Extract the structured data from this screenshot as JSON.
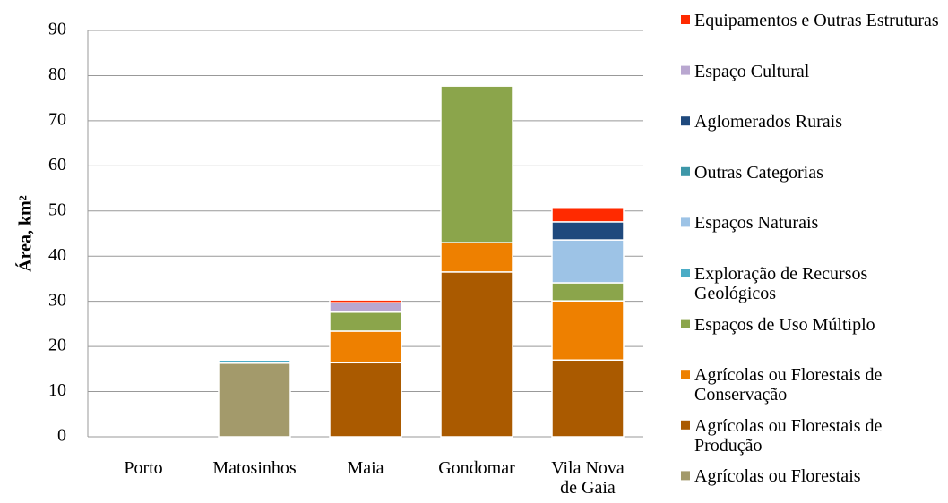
{
  "chart_data": {
    "type": "stacked_bar",
    "y_label": "Área, km²",
    "categories": [
      "Porto",
      "Matosinhos",
      "Maia",
      "Gondomar",
      "Vila Nova de Gaia"
    ],
    "series": [
      {
        "name": "Agrícolas ou Florestais",
        "color": "#a39a6b",
        "values": [
          0,
          16.3,
          0,
          0,
          0
        ]
      },
      {
        "name": "Agrícolas ou Florestais de Produção",
        "color": "#aa5a00",
        "values": [
          0,
          0,
          16.4,
          36.5,
          17.0
        ]
      },
      {
        "name": "Agrícolas ou Florestais de Conservação",
        "color": "#ee8000",
        "values": [
          0,
          0,
          7.0,
          6.5,
          13.1
        ]
      },
      {
        "name": "Espaços de Uso Múltiplo",
        "color": "#8ba54b",
        "values": [
          0,
          0,
          4.2,
          34.7,
          4.0
        ]
      },
      {
        "name": "Exploração de Recursos Geológicos",
        "color": "#4bacc6",
        "values": [
          0,
          0.7,
          0,
          0,
          0
        ]
      },
      {
        "name": "Espaços Naturais",
        "color": "#9dc3e6",
        "values": [
          0,
          0,
          0,
          0,
          9.5
        ]
      },
      {
        "name": "Outras Categorias",
        "color": "#3d97a8",
        "values": [
          0,
          0,
          0,
          0.3,
          0
        ]
      },
      {
        "name": "Aglomerados Rurais",
        "color": "#1f497d",
        "values": [
          0,
          0,
          0,
          0,
          4.0
        ]
      },
      {
        "name": "Espaço Cultural",
        "color": "#b9a7d0",
        "values": [
          0,
          0,
          2.1,
          0,
          0
        ]
      },
      {
        "name": "Equipamentos e Outras Estruturas",
        "color": "#ff2a00",
        "values": [
          0,
          0,
          0.6,
          0,
          3.2
        ]
      }
    ],
    "ylim": [
      0,
      90
    ],
    "yticks": [
      0,
      10,
      20,
      30,
      40,
      50,
      60,
      70,
      80,
      90
    ],
    "grid": true,
    "legend": "right"
  }
}
